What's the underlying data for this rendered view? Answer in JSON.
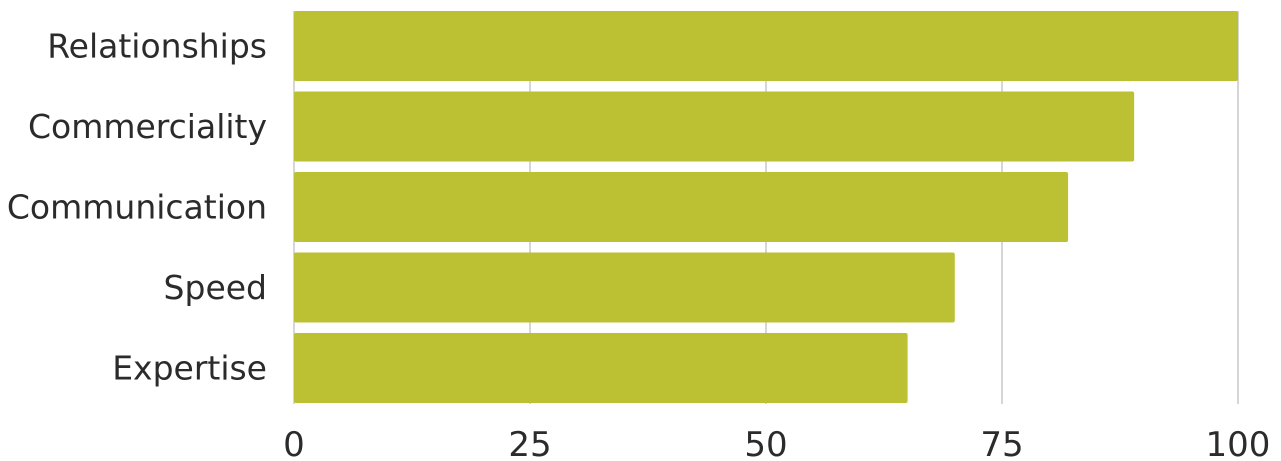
{
  "chart_data": {
    "type": "bar",
    "orientation": "horizontal",
    "categories": [
      "Relationships",
      "Commerciality",
      "Communication",
      "Speed",
      "Expertise"
    ],
    "values": [
      100,
      89,
      82,
      70,
      65
    ],
    "xlim": [
      0,
      100
    ],
    "x_ticks": [
      0,
      25,
      50,
      75,
      100
    ],
    "grid": true,
    "title": "",
    "xlabel": "",
    "ylabel": "",
    "bar_color": "#bcc134"
  }
}
